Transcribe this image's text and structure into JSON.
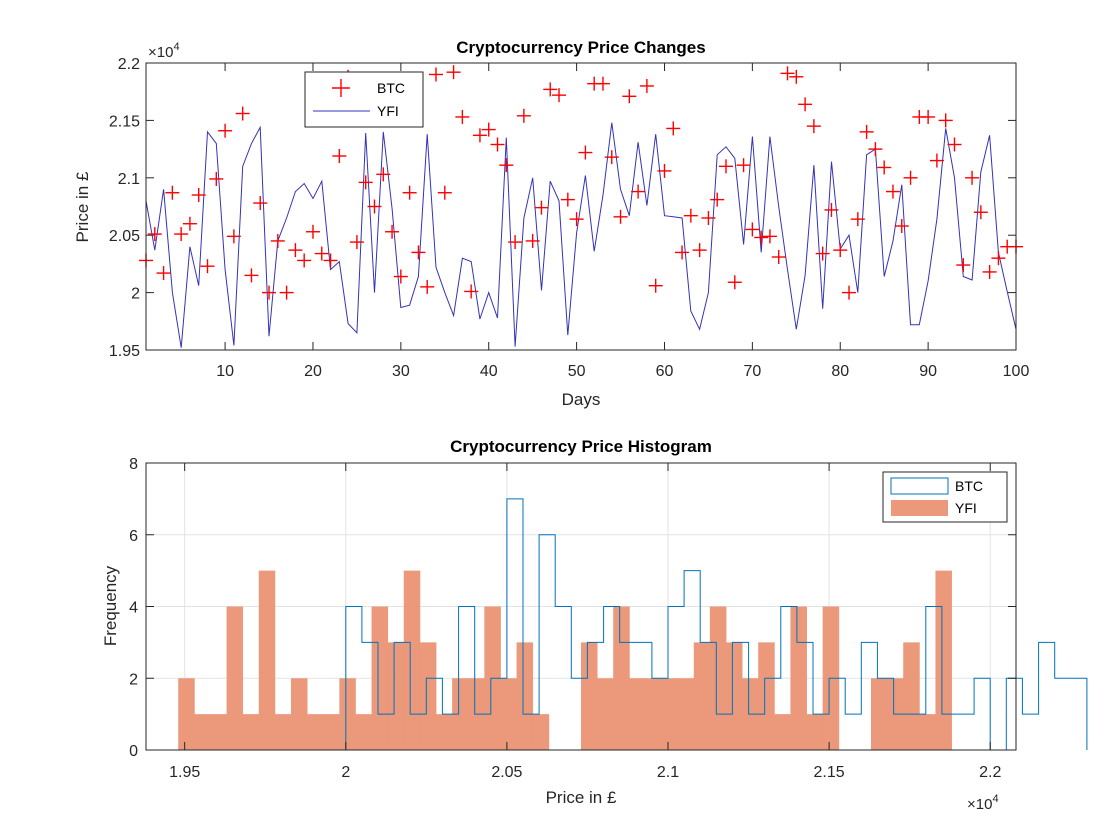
{
  "chart_data": [
    {
      "type": "scatter+line",
      "title": "Cryptocurrency Price Changes",
      "xlabel": "Days",
      "ylabel": "Price in £",
      "xlim": [
        1,
        100
      ],
      "ylim": [
        19500,
        22000
      ],
      "y_exponent_label": "×10",
      "y_exponent_power": "4",
      "xticks": [
        10,
        20,
        30,
        40,
        50,
        60,
        70,
        80,
        90,
        100
      ],
      "xtick_labels": [
        "10",
        "20",
        "30",
        "40",
        "50",
        "60",
        "70",
        "80",
        "90",
        "100"
      ],
      "yticks": [
        19500,
        20000,
        20500,
        21000,
        21500,
        22000
      ],
      "ytick_labels": [
        "1.95",
        "2",
        "2.05",
        "2.1",
        "2.15",
        "2.2"
      ],
      "grid": false,
      "legend": "top-left-inside",
      "series": [
        {
          "name": "BTC",
          "marker": "+",
          "color": "#ff0000",
          "x": [
            1,
            2,
            3,
            4,
            5,
            6,
            7,
            8,
            9,
            10,
            11,
            12,
            13,
            14,
            15,
            16,
            17,
            18,
            19,
            20,
            21,
            22,
            23,
            24,
            25,
            26,
            27,
            28,
            29,
            30,
            31,
            32,
            33,
            34,
            35,
            36,
            37,
            38,
            39,
            40,
            41,
            42,
            43,
            44,
            45,
            46,
            47,
            48,
            49,
            50,
            51,
            52,
            53,
            54,
            55,
            56,
            57,
            58,
            59,
            60,
            61,
            62,
            63,
            64,
            65,
            66,
            67,
            68,
            69,
            70,
            71,
            72,
            73,
            74,
            75,
            76,
            77,
            78,
            79,
            80,
            81,
            82,
            83,
            84,
            85,
            86,
            87,
            88,
            89,
            90,
            91,
            92,
            93,
            94,
            95,
            96,
            97,
            98,
            99,
            100
          ],
          "y": [
            20280,
            20510,
            20170,
            20870,
            20510,
            20600,
            20850,
            20230,
            20990,
            21410,
            20490,
            21560,
            20150,
            20780,
            20000,
            20450,
            20000,
            20370,
            20280,
            20530,
            20340,
            20280,
            21190,
            21880,
            20440,
            20960,
            20750,
            21030,
            20530,
            20140,
            20870,
            20350,
            20050,
            21900,
            20870,
            21920,
            21530,
            20010,
            21370,
            21420,
            21290,
            21110,
            20440,
            21540,
            20450,
            20740,
            21770,
            21720,
            20810,
            20640,
            21220,
            21820,
            21820,
            21180,
            20660,
            21710,
            20880,
            21800,
            20060,
            21060,
            21430,
            20350,
            20670,
            20370,
            20650,
            20810,
            21100,
            20090,
            21110,
            20550,
            20480,
            20490,
            20310,
            21910,
            21880,
            21640,
            21450,
            20340,
            20720,
            20370,
            20000,
            20640,
            21400,
            21250,
            21090,
            20880,
            20580,
            21000,
            21530,
            21530,
            21150,
            21500,
            21290,
            20240,
            21000,
            20700,
            20180,
            20300,
            20400,
            20400
          ]
        },
        {
          "name": "YFI",
          "line": "-",
          "color": "#3333bb",
          "x": [
            1,
            2,
            3,
            4,
            5,
            6,
            7,
            8,
            9,
            10,
            11,
            12,
            13,
            14,
            15,
            16,
            17,
            18,
            19,
            20,
            21,
            22,
            23,
            24,
            25,
            26,
            27,
            28,
            29,
            30,
            31,
            32,
            33,
            34,
            35,
            36,
            37,
            38,
            39,
            40,
            41,
            42,
            43,
            44,
            45,
            46,
            47,
            48,
            49,
            50,
            51,
            52,
            53,
            54,
            55,
            56,
            57,
            58,
            59,
            60,
            61,
            62,
            63,
            64,
            65,
            66,
            67,
            68,
            69,
            70,
            71,
            72,
            73,
            74,
            75,
            76,
            77,
            78,
            79,
            80,
            81,
            82,
            83,
            84,
            85,
            86,
            87,
            88,
            89,
            90,
            91,
            92,
            93,
            94,
            95,
            96,
            97,
            98,
            99,
            100
          ],
          "y": [
            20800,
            20370,
            20900,
            20000,
            19520,
            20400,
            20060,
            21400,
            21300,
            20200,
            19540,
            21100,
            21300,
            21440,
            19620,
            20450,
            20650,
            20880,
            20950,
            20820,
            20970,
            20200,
            20270,
            19730,
            19650,
            21390,
            20000,
            21400,
            20730,
            19870,
            19890,
            20140,
            21380,
            20220,
            20000,
            19800,
            20300,
            20270,
            19770,
            20000,
            19780,
            21350,
            19530,
            20650,
            21000,
            20020,
            20970,
            20800,
            19630,
            20520,
            21020,
            20360,
            20850,
            21480,
            20900,
            20670,
            21310,
            20760,
            21380,
            20670,
            20660,
            20650,
            19840,
            19680,
            20000,
            21200,
            21270,
            21170,
            20420,
            21360,
            20350,
            21360,
            20750,
            20200,
            19680,
            20150,
            21110,
            19860,
            21140,
            20380,
            20500,
            20000,
            21200,
            21250,
            20140,
            20450,
            20940,
            19720,
            19720,
            20100,
            20640,
            21430,
            21000,
            20140,
            20110,
            21050,
            21370,
            20350,
            20010,
            19680
          ]
        }
      ]
    },
    {
      "type": "histogram",
      "title": "Cryptocurrency Price Histogram",
      "xlabel": "Price in £",
      "ylabel": "Frequency",
      "xlim": [
        19380,
        22080
      ],
      "ylim": [
        0,
        8
      ],
      "x_exponent_label": "×10",
      "x_exponent_power": "4",
      "xticks": [
        19500,
        20000,
        20500,
        21000,
        21500,
        22000
      ],
      "xtick_labels": [
        "1.95",
        "2",
        "2.05",
        "2.1",
        "2.15",
        "2.2"
      ],
      "yticks": [
        0,
        2,
        4,
        6,
        8
      ],
      "ytick_labels": [
        "0",
        "2",
        "4",
        "6",
        "8"
      ],
      "grid": true,
      "legend": "top-right",
      "series": [
        {
          "name": "BTC",
          "style": "stairs",
          "color": "#0072bd",
          "bin_start": 20000,
          "bin_width": 50,
          "counts": [
            4,
            3,
            1,
            3,
            1,
            2,
            1,
            4,
            1,
            2,
            7,
            1,
            6,
            4,
            2,
            3,
            4,
            3,
            3,
            2,
            4,
            5,
            3,
            1,
            3,
            1,
            2,
            4,
            3,
            1,
            2,
            1,
            3,
            2,
            1,
            1,
            4,
            1,
            1,
            2,
            0,
            2,
            1,
            3,
            2,
            2
          ]
        },
        {
          "name": "YFI",
          "style": "filled",
          "color": "#eb997a",
          "bin_start": 19480,
          "bin_width": 50,
          "counts": [
            2,
            1,
            1,
            4,
            1,
            5,
            1,
            2,
            1,
            1,
            2,
            1,
            4,
            3,
            5,
            3,
            1,
            2,
            2,
            4,
            2,
            3,
            1,
            0,
            0,
            3,
            2,
            4,
            2,
            2,
            2,
            2,
            3,
            4,
            3,
            2,
            3,
            1,
            4,
            1,
            4,
            0,
            0,
            2,
            2,
            3,
            1,
            5
          ]
        }
      ]
    }
  ]
}
